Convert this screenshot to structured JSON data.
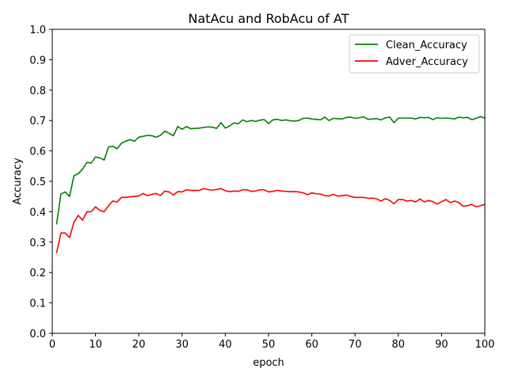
{
  "chart_data": {
    "type": "line",
    "title": "NatAcu and RobAcu of AT",
    "xlabel": "epoch",
    "ylabel": "Accuracy",
    "xlim": [
      0,
      100
    ],
    "ylim": [
      0,
      1.0
    ],
    "xticks": [
      "0",
      "10",
      "20",
      "30",
      "40",
      "50",
      "60",
      "70",
      "80",
      "90",
      "100"
    ],
    "yticks": [
      "0.0",
      "0.1",
      "0.2",
      "0.3",
      "0.4",
      "0.5",
      "0.6",
      "0.7",
      "0.8",
      "0.9",
      "1.0"
    ],
    "grid": false,
    "legend_position": "top-right",
    "x": [
      1,
      2,
      3,
      4,
      5,
      6,
      7,
      8,
      9,
      10,
      11,
      12,
      13,
      14,
      15,
      16,
      17,
      18,
      19,
      20,
      21,
      22,
      23,
      24,
      25,
      26,
      27,
      28,
      29,
      30,
      31,
      32,
      33,
      34,
      35,
      36,
      37,
      38,
      39,
      40,
      41,
      42,
      43,
      44,
      45,
      46,
      47,
      48,
      49,
      50,
      51,
      52,
      53,
      54,
      55,
      56,
      57,
      58,
      59,
      60,
      61,
      62,
      63,
      64,
      65,
      66,
      67,
      68,
      69,
      70,
      71,
      72,
      73,
      74,
      75,
      76,
      77,
      78,
      79,
      80,
      81,
      82,
      83,
      84,
      85,
      86,
      87,
      88,
      89,
      90,
      91,
      92,
      93,
      94,
      95,
      96,
      97,
      98,
      99,
      100
    ],
    "series": [
      {
        "name": "Clean_Accuracy",
        "color": "#008000",
        "values": [
          0.36,
          0.458,
          0.465,
          0.45,
          0.518,
          0.525,
          0.54,
          0.562,
          0.56,
          0.58,
          0.577,
          0.57,
          0.613,
          0.615,
          0.607,
          0.625,
          0.632,
          0.637,
          0.632,
          0.645,
          0.648,
          0.651,
          0.65,
          0.645,
          0.651,
          0.665,
          0.658,
          0.65,
          0.68,
          0.671,
          0.68,
          0.673,
          0.674,
          0.675,
          0.677,
          0.679,
          0.678,
          0.674,
          0.693,
          0.675,
          0.682,
          0.692,
          0.689,
          0.702,
          0.696,
          0.7,
          0.697,
          0.701,
          0.703,
          0.69,
          0.702,
          0.704,
          0.7,
          0.702,
          0.699,
          0.698,
          0.7,
          0.707,
          0.708,
          0.705,
          0.704,
          0.702,
          0.711,
          0.7,
          0.707,
          0.706,
          0.705,
          0.71,
          0.711,
          0.707,
          0.709,
          0.712,
          0.704,
          0.705,
          0.706,
          0.702,
          0.709,
          0.711,
          0.693,
          0.708,
          0.708,
          0.708,
          0.708,
          0.705,
          0.71,
          0.709,
          0.71,
          0.703,
          0.709,
          0.707,
          0.708,
          0.707,
          0.705,
          0.711,
          0.709,
          0.71,
          0.703,
          0.707,
          0.713,
          0.708
        ]
      },
      {
        "name": "Adver_Accuracy",
        "color": "#ff0000",
        "values": [
          0.265,
          0.33,
          0.33,
          0.315,
          0.365,
          0.388,
          0.372,
          0.4,
          0.4,
          0.416,
          0.404,
          0.4,
          0.42,
          0.435,
          0.432,
          0.447,
          0.447,
          0.449,
          0.45,
          0.452,
          0.46,
          0.453,
          0.457,
          0.46,
          0.453,
          0.468,
          0.465,
          0.455,
          0.466,
          0.465,
          0.472,
          0.47,
          0.47,
          0.47,
          0.476,
          0.473,
          0.471,
          0.473,
          0.476,
          0.469,
          0.466,
          0.468,
          0.467,
          0.472,
          0.472,
          0.467,
          0.468,
          0.472,
          0.472,
          0.465,
          0.467,
          0.47,
          0.468,
          0.467,
          0.466,
          0.466,
          0.465,
          0.462,
          0.456,
          0.462,
          0.459,
          0.458,
          0.453,
          0.452,
          0.457,
          0.451,
          0.453,
          0.455,
          0.45,
          0.447,
          0.447,
          0.447,
          0.444,
          0.445,
          0.442,
          0.435,
          0.443,
          0.437,
          0.426,
          0.44,
          0.44,
          0.435,
          0.437,
          0.432,
          0.442,
          0.432,
          0.437,
          0.433,
          0.425,
          0.433,
          0.44,
          0.43,
          0.435,
          0.43,
          0.418,
          0.42,
          0.424,
          0.416,
          0.42,
          0.424
        ]
      }
    ]
  }
}
